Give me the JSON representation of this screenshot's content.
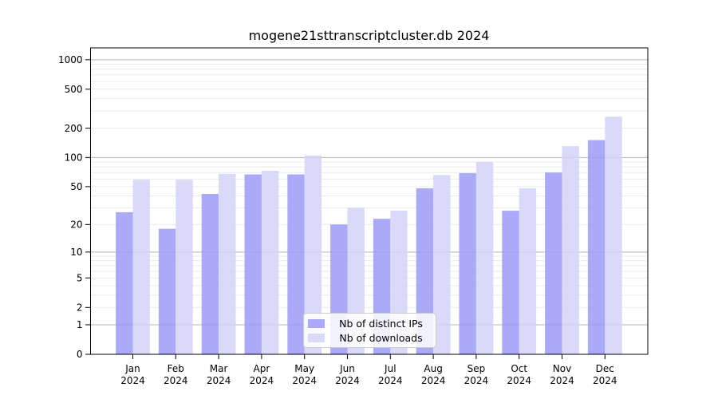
{
  "chart_data": {
    "type": "bar",
    "title": "mogene21sttranscriptcluster.db 2024",
    "scale": "log1p",
    "categories": [
      "Jan",
      "Feb",
      "Mar",
      "Apr",
      "May",
      "Jun",
      "Jul",
      "Aug",
      "Sep",
      "Oct",
      "Nov",
      "Dec"
    ],
    "year_label": "2024",
    "series": [
      {
        "name": "Nb of distinct IPs",
        "color": "#9b9bf4",
        "values": [
          27,
          18,
          42,
          67,
          67,
          20,
          23,
          48,
          69,
          28,
          70,
          151
        ]
      },
      {
        "name": "Nb of downloads",
        "color": "#d4d4f7",
        "values": [
          59,
          59,
          68,
          73,
          105,
          30,
          28,
          66,
          90,
          48,
          131,
          262
        ]
      }
    ],
    "y_ticks": [
      0,
      1,
      2,
      5,
      10,
      20,
      50,
      100,
      200,
      500,
      1000
    ],
    "ylim": [
      0,
      1320
    ],
    "grid": true,
    "legend_position": "bottom-center",
    "axis_color": "#000000",
    "major_grid_color": "#b5b5b5",
    "minor_grid_color": "#ebebeb",
    "xlabel": "",
    "ylabel": ""
  }
}
